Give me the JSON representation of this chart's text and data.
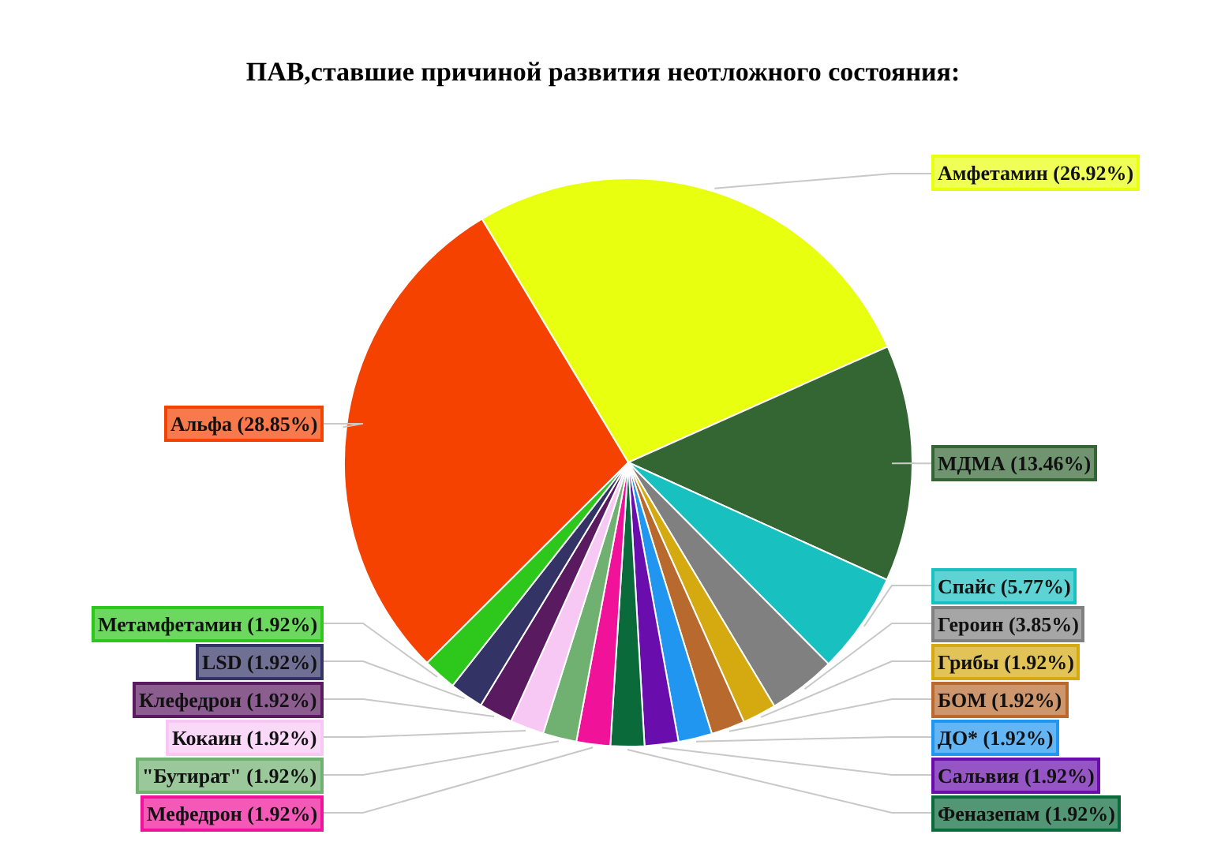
{
  "chart_data": {
    "type": "pie",
    "title": "ПАВ,ставшие причиной развития неотложного состояния:",
    "categories": [
      "Амфетамин",
      "МДМА",
      "Спайс",
      "Героин",
      "Грибы",
      "БОМ",
      "ДО*",
      "Сальвия",
      "Феназепам",
      "Мефедрон",
      "\"Бутират\"",
      "Кокаин",
      "Клефедрон",
      "LSD",
      "Метамфетамин",
      "Альфа"
    ],
    "values": [
      26.92,
      13.46,
      5.77,
      3.85,
      1.92,
      1.92,
      1.92,
      1.92,
      1.92,
      1.92,
      1.92,
      1.92,
      1.92,
      1.92,
      1.92,
      28.85
    ],
    "value_labels": [
      "(26.92%)",
      "(13.46%)",
      "(5.77%)",
      "(3.85%)",
      "(1.92%)",
      "(1.92%)",
      "(1.92%)",
      "(1.92%)",
      "(1.92%)",
      "(1.92%)",
      "(1.92%)",
      "(1.92%)",
      "(1.92%)",
      "(1.92%)",
      "(1.92%)",
      "(28.85%)"
    ],
    "colors": [
      "#e8ff10",
      "#336633",
      "#19c0c0",
      "#808080",
      "#d4aa10",
      "#b8692e",
      "#2196f0",
      "#6a0dad",
      "#0a6a3a",
      "#f0139a",
      "#70b070",
      "#f8c8f5",
      "#5a1a60",
      "#333366",
      "#2ec81c",
      "#f54200"
    ]
  }
}
